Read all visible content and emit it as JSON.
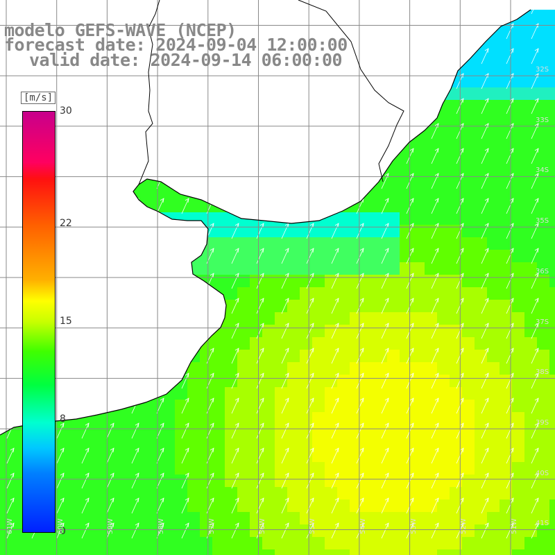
{
  "title": {
    "line1": "modelo GEFS-WAVE (NCEP)",
    "line2": "forecast date: 2024-09-04 12:00:00",
    "line3": "valid date: 2024-09-14 06:00:00"
  },
  "legend": {
    "unit": "[m/s]",
    "ticks": [
      {
        "label": "30",
        "value": 30
      },
      {
        "label": "22",
        "value": 22
      },
      {
        "label": "15",
        "value": 15
      },
      {
        "label": "8",
        "value": 8
      },
      {
        "label": "0",
        "value": 0
      }
    ],
    "colors": [
      "#c8008c",
      "#ff1010",
      "#ffb000",
      "#ffff00",
      "#40ff00",
      "#00ffd0",
      "#0020ff"
    ]
  },
  "map": {
    "lat_labels": [
      "32S",
      "33S",
      "34S",
      "35S",
      "36S",
      "37S",
      "38S",
      "39S",
      "40S",
      "41S"
    ],
    "lon_labels": [
      "61W",
      "60W",
      "59W",
      "58W",
      "57W",
      "56W",
      "55W",
      "54W",
      "53W",
      "52W",
      "51W"
    ],
    "land_color": "#ffffff",
    "coast_color": "#000000",
    "grid_color": "#888888"
  }
}
